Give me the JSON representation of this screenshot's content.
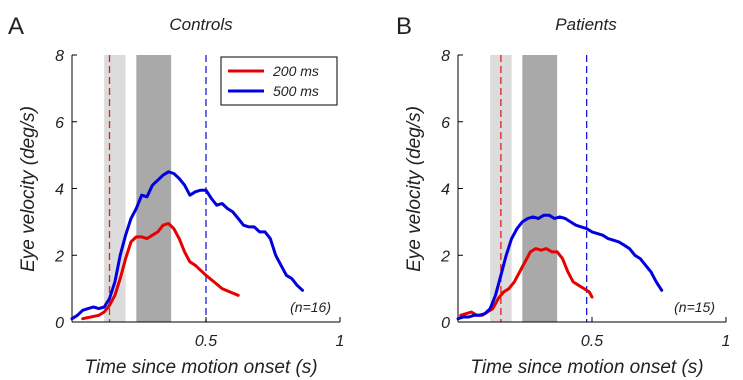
{
  "chart_data": [
    {
      "type": "line",
      "panel_letter": "A",
      "title": "Controls",
      "xlabel": "Time since motion onset (s)",
      "ylabel": "Eye velocity (deg/s)",
      "xlim": [
        0,
        1
      ],
      "ylim": [
        0,
        8
      ],
      "xticks": [
        0.5,
        1
      ],
      "xtick_labels": [
        "0.5",
        "1"
      ],
      "yticks": [
        0,
        2,
        4,
        6,
        8
      ],
      "ytick_labels": [
        "0",
        "2",
        "4",
        "6",
        "8"
      ],
      "annotation": "(n=16)",
      "light_band": [
        0.12,
        0.2
      ],
      "dark_band": [
        0.24,
        0.37
      ],
      "dashed_lines": [
        {
          "x": 0.14,
          "color": "#e02020"
        },
        {
          "x": 0.5,
          "color": "#1a1ad6"
        }
      ],
      "legend": {
        "position": "top-right",
        "entries": [
          {
            "label": "200 ms",
            "color": "#e60000"
          },
          {
            "label": "500 ms",
            "color": "#0000e0"
          }
        ]
      },
      "series": [
        {
          "name": "200 ms",
          "color": "#e60000",
          "x": [
            0.04,
            0.07,
            0.1,
            0.12,
            0.14,
            0.16,
            0.18,
            0.2,
            0.22,
            0.24,
            0.26,
            0.28,
            0.3,
            0.32,
            0.34,
            0.36,
            0.38,
            0.4,
            0.42,
            0.44,
            0.46,
            0.48,
            0.5,
            0.53,
            0.56,
            0.59,
            0.62
          ],
          "y": [
            0.1,
            0.15,
            0.2,
            0.3,
            0.5,
            0.8,
            1.3,
            1.9,
            2.4,
            2.55,
            2.55,
            2.5,
            2.6,
            2.7,
            2.9,
            2.95,
            2.8,
            2.5,
            2.1,
            1.8,
            1.7,
            1.55,
            1.4,
            1.2,
            1.0,
            0.9,
            0.8
          ]
        },
        {
          "name": "500 ms",
          "color": "#0000e0",
          "x": [
            0.0,
            0.02,
            0.04,
            0.06,
            0.08,
            0.1,
            0.12,
            0.14,
            0.16,
            0.18,
            0.2,
            0.22,
            0.24,
            0.26,
            0.28,
            0.3,
            0.32,
            0.34,
            0.36,
            0.38,
            0.4,
            0.42,
            0.44,
            0.46,
            0.48,
            0.5,
            0.52,
            0.54,
            0.56,
            0.58,
            0.6,
            0.62,
            0.64,
            0.66,
            0.68,
            0.7,
            0.72,
            0.74,
            0.76,
            0.78,
            0.8,
            0.82,
            0.84,
            0.86
          ],
          "y": [
            0.1,
            0.2,
            0.35,
            0.4,
            0.45,
            0.4,
            0.45,
            0.7,
            1.2,
            2.0,
            2.6,
            3.1,
            3.4,
            3.8,
            3.75,
            4.1,
            4.25,
            4.4,
            4.5,
            4.45,
            4.3,
            4.1,
            3.8,
            3.9,
            3.95,
            3.95,
            3.7,
            3.5,
            3.55,
            3.4,
            3.3,
            3.1,
            2.9,
            2.85,
            2.85,
            2.7,
            2.7,
            2.5,
            2.0,
            1.7,
            1.4,
            1.3,
            1.1,
            0.95
          ]
        }
      ]
    },
    {
      "type": "line",
      "panel_letter": "B",
      "title": "Patients",
      "xlabel": "Time since motion onset (s)",
      "ylabel": "Eye velocity (deg/s)",
      "xlim": [
        0,
        1
      ],
      "ylim": [
        0,
        8
      ],
      "xticks": [
        0.5,
        1
      ],
      "xtick_labels": [
        "0.5",
        "1"
      ],
      "yticks": [
        0,
        2,
        4,
        6,
        8
      ],
      "ytick_labels": [
        "0",
        "2",
        "4",
        "6",
        "8"
      ],
      "annotation": "(n=15)",
      "light_band": [
        0.12,
        0.2
      ],
      "dark_band": [
        0.24,
        0.37
      ],
      "dashed_lines": [
        {
          "x": 0.16,
          "color": "#e02020"
        },
        {
          "x": 0.48,
          "color": "#1a1ad6"
        }
      ],
      "series": [
        {
          "name": "200 ms",
          "color": "#e60000",
          "x": [
            0.01,
            0.03,
            0.05,
            0.07,
            0.09,
            0.11,
            0.13,
            0.15,
            0.17,
            0.19,
            0.21,
            0.23,
            0.25,
            0.27,
            0.29,
            0.31,
            0.33,
            0.35,
            0.37,
            0.39,
            0.41,
            0.43,
            0.45,
            0.47,
            0.49,
            0.5
          ],
          "y": [
            0.2,
            0.25,
            0.3,
            0.2,
            0.2,
            0.3,
            0.4,
            0.7,
            0.9,
            1.0,
            1.2,
            1.5,
            1.8,
            2.1,
            2.2,
            2.15,
            2.2,
            2.1,
            2.1,
            1.9,
            1.5,
            1.2,
            1.1,
            1.0,
            0.9,
            0.75
          ]
        },
        {
          "name": "500 ms",
          "color": "#0000e0",
          "x": [
            0.0,
            0.02,
            0.04,
            0.06,
            0.08,
            0.1,
            0.12,
            0.14,
            0.16,
            0.18,
            0.2,
            0.22,
            0.24,
            0.26,
            0.28,
            0.3,
            0.32,
            0.34,
            0.36,
            0.38,
            0.4,
            0.42,
            0.44,
            0.46,
            0.48,
            0.5,
            0.52,
            0.54,
            0.56,
            0.58,
            0.6,
            0.62,
            0.64,
            0.66,
            0.68,
            0.7,
            0.72,
            0.74,
            0.76
          ],
          "y": [
            0.1,
            0.15,
            0.15,
            0.2,
            0.2,
            0.25,
            0.4,
            0.8,
            1.4,
            2.0,
            2.5,
            2.8,
            3.0,
            3.1,
            3.15,
            3.1,
            3.2,
            3.2,
            3.1,
            3.15,
            3.1,
            3.0,
            2.9,
            2.85,
            2.8,
            2.7,
            2.65,
            2.6,
            2.5,
            2.45,
            2.4,
            2.3,
            2.2,
            2.0,
            1.9,
            1.7,
            1.5,
            1.2,
            0.95
          ]
        }
      ]
    }
  ]
}
